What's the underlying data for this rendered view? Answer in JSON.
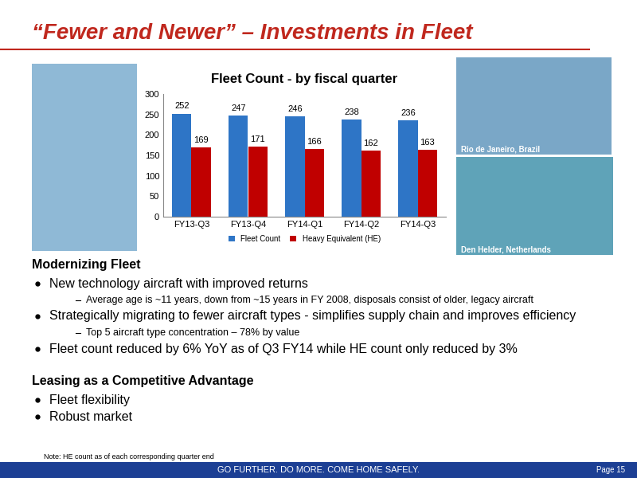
{
  "header": {
    "title": "“Fewer and Newer” – Investments in Fleet"
  },
  "chart_data": {
    "type": "bar",
    "title": "Fleet Count - by fiscal quarter",
    "categories": [
      "FY13-Q3",
      "FY13-Q4",
      "FY14-Q1",
      "FY14-Q2",
      "FY14-Q3"
    ],
    "series": [
      {
        "name": "Fleet Count",
        "color": "#2e75c6",
        "values": [
          252,
          247,
          246,
          238,
          236
        ]
      },
      {
        "name": "Heavy Equivalent (HE)",
        "color": "#c00000",
        "values": [
          169,
          171,
          166,
          162,
          163
        ]
      }
    ],
    "ylim": [
      0,
      300
    ],
    "yticks": [
      0,
      50,
      100,
      150,
      200,
      250,
      300
    ],
    "grid": false,
    "data_labels": true,
    "legend": "lower center"
  },
  "photos": [
    {
      "caption": "Rio de Janeiro, Brazil"
    },
    {
      "caption": "Den Helder, Netherlands"
    }
  ],
  "sections": [
    {
      "heading": "Modernizing Fleet",
      "items": [
        {
          "text": "New technology aircraft with improved returns",
          "subitems": [
            "Average age is ~11 years, down from ~15 years in FY 2008, disposals consist of older, legacy aircraft"
          ]
        },
        {
          "text": "Strategically migrating to fewer aircraft types - simplifies supply chain and improves efficiency",
          "subitems": [
            "Top 5 aircraft type concentration – 78% by value"
          ]
        },
        {
          "text": "Fleet count reduced by 6% YoY as of Q3 FY14 while HE count only reduced by 3%",
          "subitems": []
        }
      ]
    },
    {
      "heading": "Leasing as a Competitive Advantage",
      "items": [
        {
          "text": "Fleet flexibility",
          "subitems": []
        },
        {
          "text": "Robust market",
          "subitems": []
        }
      ]
    }
  ],
  "note": "Note: HE count as of each corresponding quarter end",
  "footer": {
    "slogan": "GO FURTHER. DO MORE. COME HOME SAFELY.",
    "page": "Page 15"
  }
}
